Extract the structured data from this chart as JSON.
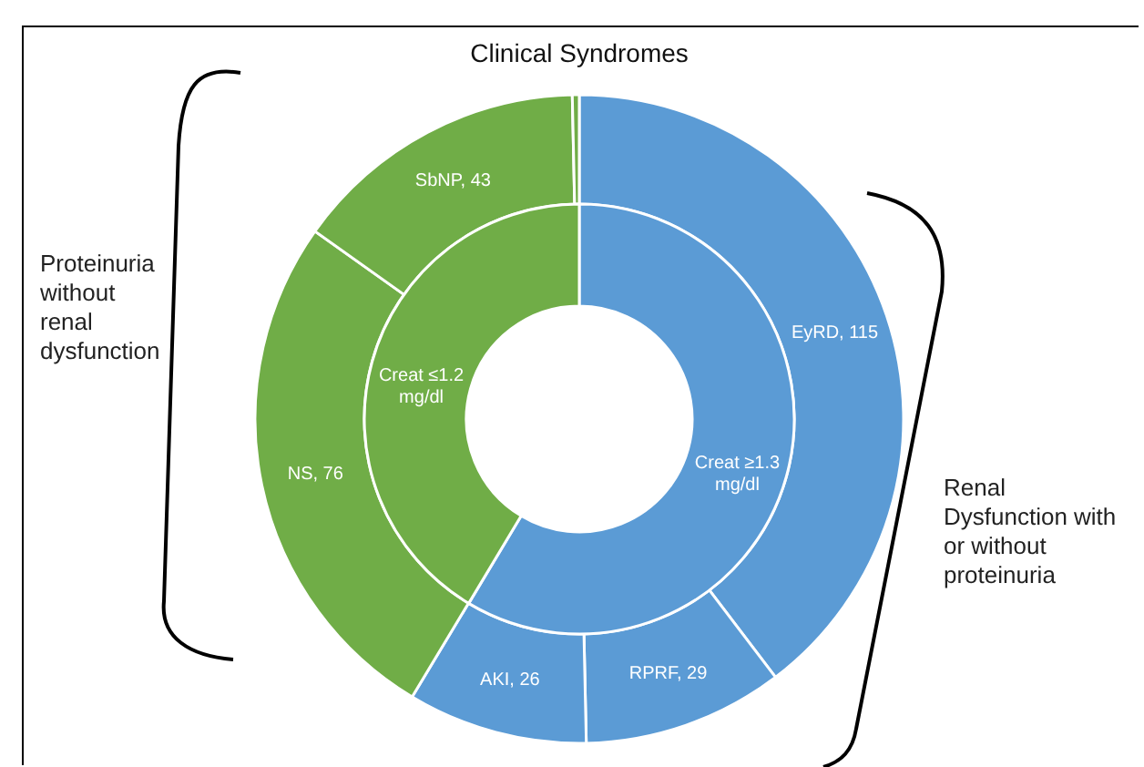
{
  "chart_data": [
    {
      "type": "donut",
      "title": "Clinical Syndromes",
      "categories": [
        "EyRD, 115",
        "RPRF, 29",
        "AKI, 26",
        "NS, 76",
        "SbNP, 43",
        null
      ],
      "values": [
        115,
        29,
        26,
        76,
        43,
        1
      ],
      "colors": [
        "#5b9bd5",
        "#5b9bd5",
        "#5b9bd5",
        "#70ad47",
        "#70ad47",
        "#70ad47"
      ],
      "annotations": [
        "Proteinuria without renal dysfunction",
        "Renal Dysfunction with or without proteinuria"
      ]
    },
    {
      "type": "donut",
      "categories": [
        "Creat ≥1.3 mg/dl",
        "Creat ≤1.2 mg/dl"
      ],
      "values": [
        58.6,
        41.4
      ],
      "colors": [
        "#5b9bd5",
        "#70ad47"
      ]
    }
  ]
}
